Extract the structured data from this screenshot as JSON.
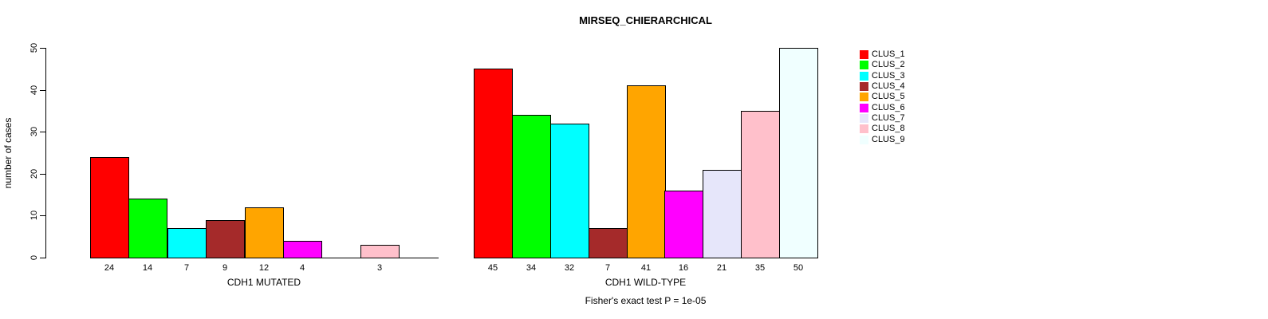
{
  "title": "MIRSEQ_CHIERARCHICAL",
  "footer": "Fisher's exact test P = 1e-05",
  "y_axis": {
    "label": "number of cases",
    "ticks": [
      0,
      10,
      20,
      30,
      40,
      50
    ],
    "max": 50
  },
  "legend": {
    "position": "right",
    "items": [
      {
        "label": "CLUS_1",
        "color": "#FF0000"
      },
      {
        "label": "CLUS_2",
        "color": "#00FF00"
      },
      {
        "label": "CLUS_3",
        "color": "#00FFFF"
      },
      {
        "label": "CLUS_4",
        "color": "#A52A2A"
      },
      {
        "label": "CLUS_5",
        "color": "#FFA500"
      },
      {
        "label": "CLUS_6",
        "color": "#FF00FF"
      },
      {
        "label": "CLUS_7",
        "color": "#E6E6FA"
      },
      {
        "label": "CLUS_8",
        "color": "#FFC0CB"
      },
      {
        "label": "CLUS_9",
        "color": "#F0FFFF"
      }
    ]
  },
  "chart_data": [
    {
      "type": "bar",
      "xlabel": "CDH1 MUTATED",
      "categories": [
        "CLUS_1",
        "CLUS_2",
        "CLUS_3",
        "CLUS_4",
        "CLUS_5",
        "CLUS_6",
        "CLUS_7",
        "CLUS_8",
        "CLUS_9"
      ],
      "values": [
        24,
        14,
        7,
        9,
        12,
        4,
        0,
        3,
        0
      ],
      "colors": [
        "#FF0000",
        "#00FF00",
        "#00FFFF",
        "#A52A2A",
        "#FFA500",
        "#FF00FF",
        "#E6E6FA",
        "#FFC0CB",
        "#F0FFFF"
      ],
      "ylim": [
        0,
        50
      ],
      "grid": false
    },
    {
      "type": "bar",
      "xlabel": "CDH1 WILD-TYPE",
      "categories": [
        "CLUS_1",
        "CLUS_2",
        "CLUS_3",
        "CLUS_4",
        "CLUS_5",
        "CLUS_6",
        "CLUS_7",
        "CLUS_8",
        "CLUS_9"
      ],
      "values": [
        45,
        34,
        32,
        7,
        41,
        16,
        21,
        35,
        50
      ],
      "colors": [
        "#FF0000",
        "#00FF00",
        "#00FFFF",
        "#A52A2A",
        "#FFA500",
        "#FF00FF",
        "#E6E6FA",
        "#FFC0CB",
        "#F0FFFF"
      ],
      "ylim": [
        0,
        50
      ],
      "grid": false
    }
  ]
}
